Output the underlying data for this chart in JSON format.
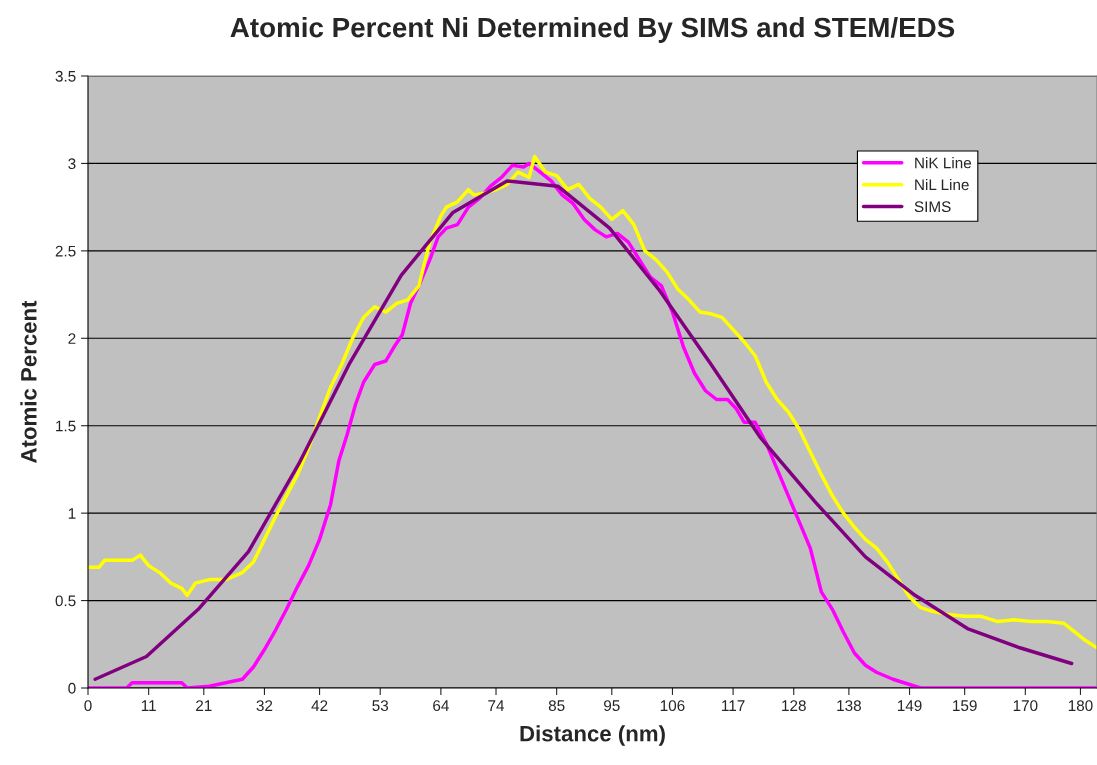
{
  "chart_data": {
    "type": "line",
    "title": "Atomic Percent Ni Determined By SIMS and STEM/EDS",
    "xlabel": "Distance (nm)",
    "ylabel": "Atomic Percent",
    "xlim": [
      0,
      183
    ],
    "ylim": [
      0,
      3.5
    ],
    "xticks": [
      0,
      11,
      21,
      32,
      42,
      53,
      64,
      74,
      85,
      95,
      106,
      117,
      128,
      138,
      149,
      159,
      170,
      180
    ],
    "yticks": [
      0,
      0.5,
      1,
      1.5,
      2,
      2.5,
      3,
      3.5
    ],
    "grid": "y",
    "legend": "top right",
    "marker": "none",
    "line_style": "solid",
    "series": [
      {
        "name": "NiK Line",
        "color": "#ff00ff",
        "x": [
          0,
          7,
          8,
          17,
          18,
          22,
          25,
          28,
          30,
          32,
          34,
          36,
          38,
          40,
          42,
          44,
          45.5,
          47,
          48.5,
          50,
          52,
          54,
          55.5,
          57,
          58.5,
          60,
          62,
          63.5,
          65,
          67,
          69,
          71,
          73,
          75,
          77,
          79,
          80,
          82,
          84,
          86,
          88,
          90,
          92,
          94,
          96,
          98,
          100,
          102,
          104,
          106,
          108,
          110,
          112,
          114,
          116,
          117.5,
          119,
          121,
          123,
          125,
          127,
          129,
          131,
          133,
          135,
          137,
          139,
          141,
          143,
          146,
          149,
          151,
          183
        ],
        "values": [
          0,
          0,
          0.03,
          0.03,
          0,
          0.01,
          0.03,
          0.05,
          0.12,
          0.22,
          0.33,
          0.45,
          0.58,
          0.7,
          0.85,
          1.05,
          1.3,
          1.45,
          1.62,
          1.75,
          1.85,
          1.87,
          1.95,
          2.02,
          2.2,
          2.3,
          2.45,
          2.58,
          2.63,
          2.65,
          2.75,
          2.8,
          2.87,
          2.92,
          2.99,
          2.98,
          3.0,
          2.95,
          2.9,
          2.82,
          2.77,
          2.68,
          2.62,
          2.58,
          2.6,
          2.55,
          2.45,
          2.35,
          2.3,
          2.15,
          1.95,
          1.8,
          1.7,
          1.65,
          1.65,
          1.6,
          1.52,
          1.52,
          1.4,
          1.25,
          1.1,
          0.95,
          0.8,
          0.55,
          0.45,
          0.32,
          0.2,
          0.13,
          0.09,
          0.05,
          0.02,
          0,
          0
        ]
      },
      {
        "name": "NiL Line",
        "color": "#ffff00",
        "x": [
          0,
          2,
          3,
          5,
          8,
          9.5,
          11,
          13,
          15,
          17,
          18,
          19.5,
          22,
          25,
          28,
          30,
          32,
          34,
          36,
          38,
          40,
          42,
          44,
          46,
          48,
          50,
          52,
          54,
          56,
          58,
          60,
          62,
          64,
          65,
          67,
          69,
          70,
          72,
          74,
          76,
          78,
          80,
          81,
          83,
          85,
          87,
          89,
          91,
          93,
          95,
          97,
          99,
          101,
          103,
          105,
          107,
          109,
          111,
          113,
          115,
          117,
          119,
          121,
          123,
          125,
          127,
          129,
          131,
          133,
          135,
          137,
          139,
          141,
          143,
          145,
          147,
          149,
          151,
          153,
          156,
          159,
          162,
          165,
          168,
          171,
          174,
          177,
          179,
          181,
          183
        ],
        "values": [
          0.69,
          0.69,
          0.73,
          0.73,
          0.73,
          0.76,
          0.7,
          0.66,
          0.6,
          0.57,
          0.53,
          0.6,
          0.62,
          0.62,
          0.66,
          0.72,
          0.85,
          0.98,
          1.1,
          1.22,
          1.37,
          1.55,
          1.72,
          1.85,
          2.0,
          2.12,
          2.18,
          2.15,
          2.2,
          2.22,
          2.3,
          2.55,
          2.7,
          2.75,
          2.78,
          2.85,
          2.82,
          2.83,
          2.85,
          2.88,
          2.95,
          2.92,
          3.04,
          2.95,
          2.93,
          2.85,
          2.88,
          2.8,
          2.75,
          2.68,
          2.73,
          2.65,
          2.5,
          2.45,
          2.38,
          2.28,
          2.22,
          2.15,
          2.14,
          2.12,
          2.05,
          1.98,
          1.9,
          1.75,
          1.65,
          1.58,
          1.48,
          1.35,
          1.22,
          1.1,
          1.0,
          0.92,
          0.85,
          0.8,
          0.72,
          0.62,
          0.52,
          0.46,
          0.44,
          0.42,
          0.41,
          0.41,
          0.38,
          0.39,
          0.38,
          0.38,
          0.37,
          0.32,
          0.27,
          0.23
        ]
      },
      {
        "name": "SIMS",
        "color": "#800080",
        "x": [
          1.3,
          10.6,
          20,
          29.1,
          38.2,
          47.5,
          56.8,
          66.2,
          76,
          85.2,
          94.6,
          103.5,
          112.8,
          122,
          132,
          141,
          150,
          159.5,
          169,
          178.4
        ],
        "values": [
          0.05,
          0.18,
          0.45,
          0.78,
          1.28,
          1.86,
          2.36,
          2.72,
          2.9,
          2.87,
          2.63,
          2.28,
          1.86,
          1.43,
          1.06,
          0.75,
          0.53,
          0.34,
          0.23,
          0.14
        ]
      }
    ]
  }
}
